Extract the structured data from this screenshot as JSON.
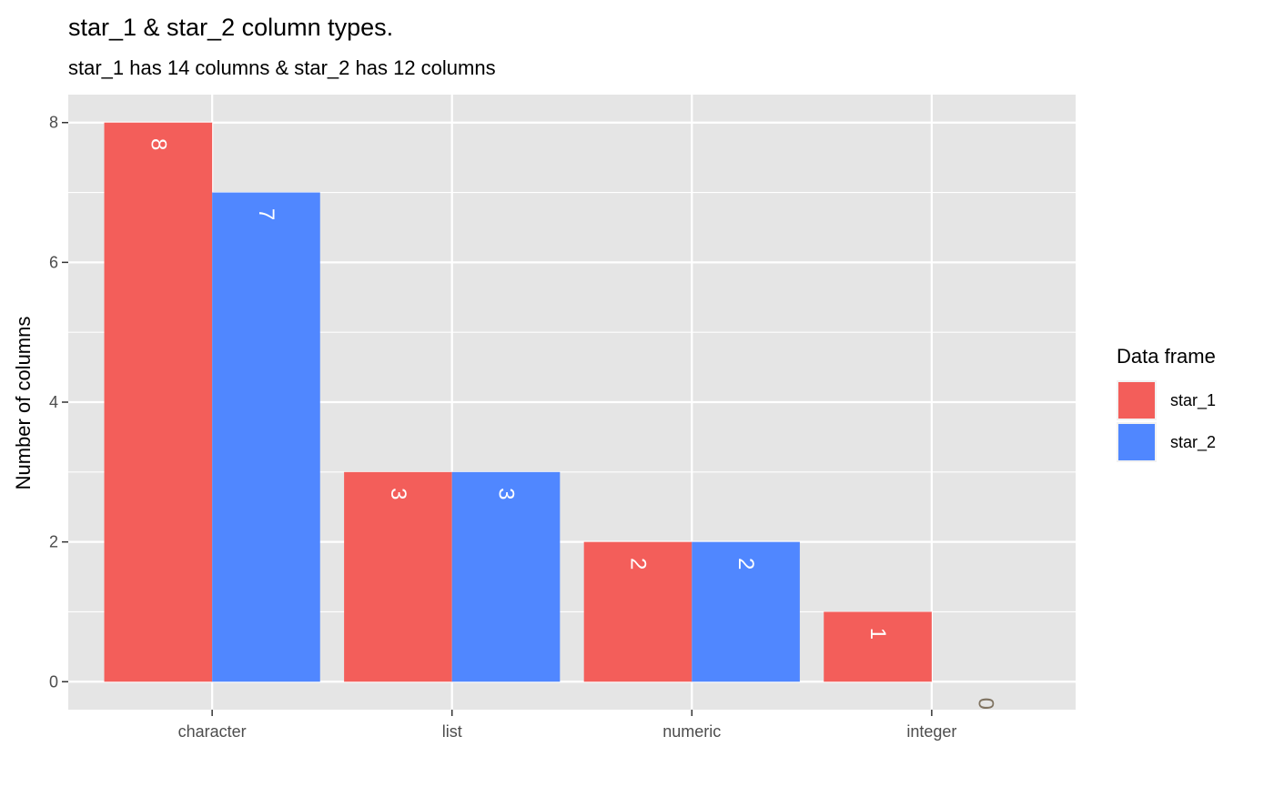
{
  "chart_data": {
    "type": "bar",
    "title": "star_1 & star_2 column types.",
    "subtitle": "star_1 has 14 columns & star_2 has 12 columns",
    "xlabel": "",
    "ylabel": "Number of columns",
    "categories": [
      "character",
      "list",
      "numeric",
      "integer"
    ],
    "series": [
      {
        "name": "star_1",
        "values": [
          8,
          3,
          2,
          1
        ],
        "color": "#F35E5A"
      },
      {
        "name": "star_2",
        "values": [
          7,
          3,
          2,
          0
        ],
        "color": "#5087FF"
      }
    ],
    "data_labels": [
      [
        "8",
        "3",
        "2",
        "1"
      ],
      [
        "7",
        "3",
        "2",
        "0"
      ]
    ],
    "ylim": [
      -0.4,
      8.4
    ],
    "yticks": [
      0,
      2,
      4,
      6,
      8
    ],
    "ytick_labels": [
      "0",
      "2",
      "4",
      "6",
      "8"
    ],
    "grid": true,
    "legend": {
      "title": "Data frame",
      "position": "right"
    },
    "colors": {
      "panel_background": "#E5E5E5",
      "grid": "#FFFFFF",
      "label_on_bar": "#FFFFFF",
      "label_zero": "#7F7361"
    }
  }
}
